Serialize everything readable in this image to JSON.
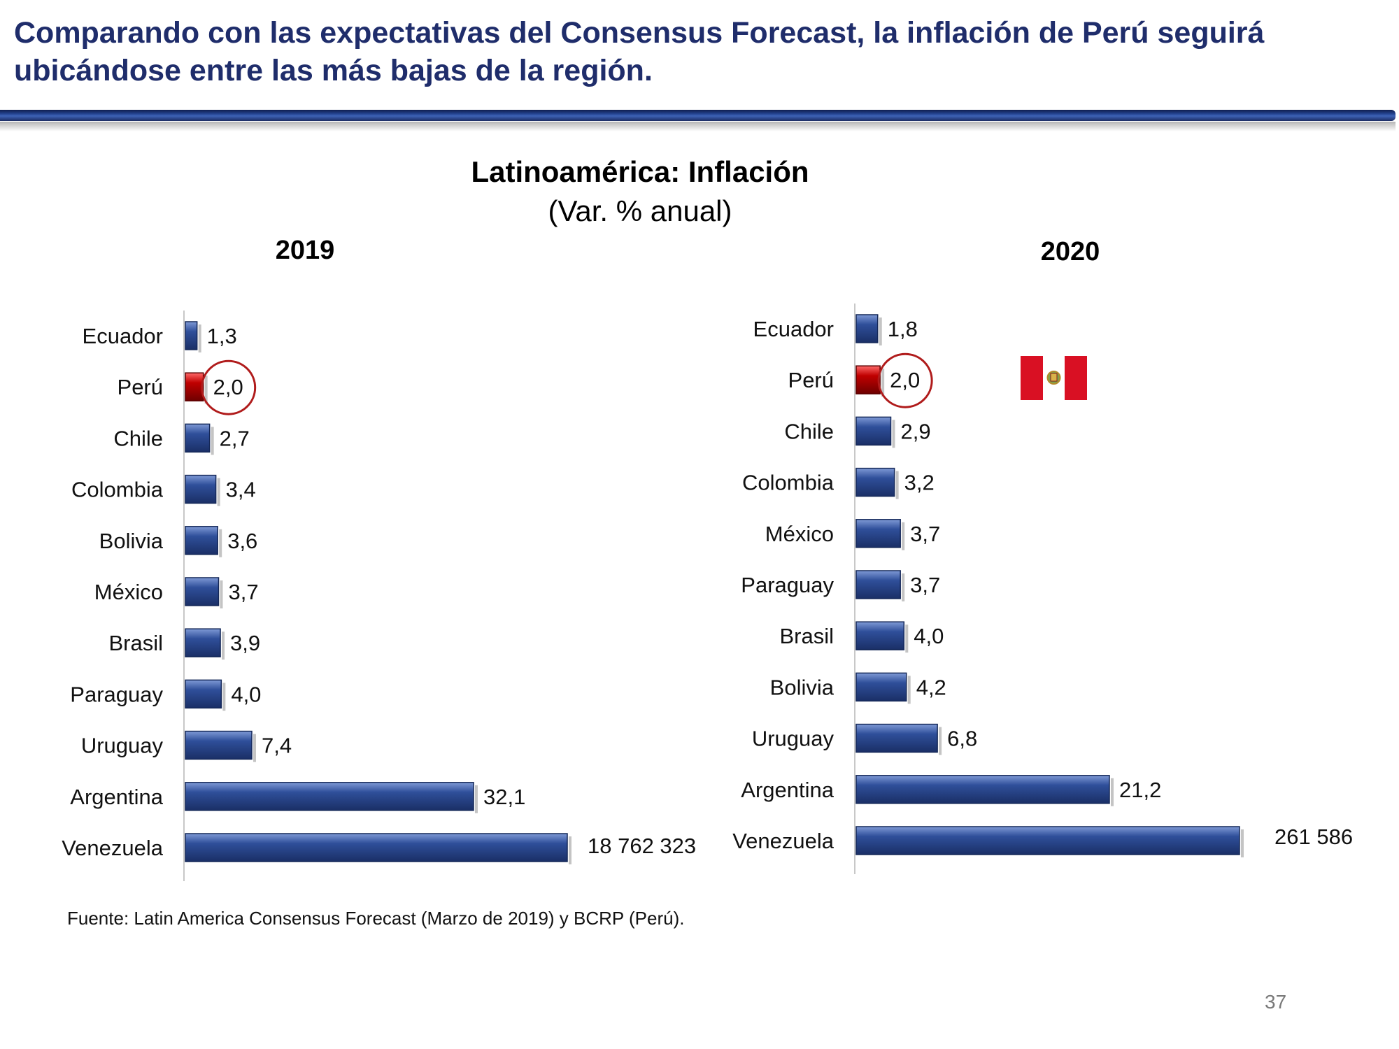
{
  "header": {
    "title": "Comparando con las expectativas del Consensus Forecast, la inflación de Perú seguirá ubicándose entre las más bajas de la región."
  },
  "chart_title": "Latinoamérica: Inflación",
  "chart_subtitle": "(Var. % anual)",
  "chart_data": [
    {
      "type": "bar",
      "orientation": "horizontal",
      "title": "2019",
      "categories": [
        "Ecuador",
        "Perú",
        "Chile",
        "Colombia",
        "Bolivia",
        "México",
        "Brasil",
        "Paraguay",
        "Uruguay",
        "Argentina",
        "Venezuela"
      ],
      "values": [
        1.3,
        2.0,
        2.7,
        3.4,
        3.6,
        3.7,
        3.9,
        4.0,
        7.4,
        32.1,
        18762323
      ],
      "labels": [
        "1,3",
        "2,0",
        "2,7",
        "3,4",
        "3,6",
        "3,7",
        "3,9",
        "4,0",
        "7,4",
        "32,1",
        "18 762 323"
      ],
      "highlight": "Perú",
      "highlight_color": "#c00000",
      "bar_color": "#2f4f9a",
      "axis_break": "Venezuela",
      "xlabel": "",
      "ylabel": ""
    },
    {
      "type": "bar",
      "orientation": "horizontal",
      "title": "2020",
      "categories": [
        "Ecuador",
        "Perú",
        "Chile",
        "Colombia",
        "México",
        "Paraguay",
        "Brasil",
        "Bolivia",
        "Uruguay",
        "Argentina",
        "Venezuela"
      ],
      "values": [
        1.8,
        2.0,
        2.9,
        3.2,
        3.7,
        3.7,
        4.0,
        4.2,
        6.8,
        21.2,
        261586
      ],
      "labels": [
        "1,8",
        "2,0",
        "2,9",
        "3,2",
        "3,7",
        "3,7",
        "4,0",
        "4,2",
        "6,8",
        "21,2",
        "261 586"
      ],
      "highlight": "Perú",
      "highlight_color": "#c00000",
      "bar_color": "#2f4f9a",
      "axis_break": "Venezuela",
      "xlabel": "",
      "ylabel": ""
    }
  ],
  "flag_icon": "peru-flag-icon",
  "flag_colors": {
    "red": "#d91023",
    "white": "#ffffff"
  },
  "source": "Fuente: Latin America Consensus Forecast (Marzo de 2019) y BCRP (Perú).",
  "page_number": "37"
}
